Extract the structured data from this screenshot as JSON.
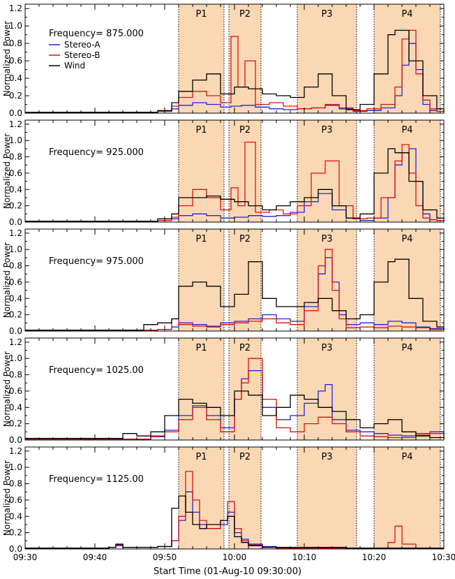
{
  "colors": {
    "stereo_a": "#2222dd",
    "stereo_b": "#dd1111",
    "wind": "#000000",
    "shade": "#fbd8b4"
  },
  "legend": [
    {
      "label": "Stereo-A",
      "color": "#2222dd"
    },
    {
      "label": "Stereo-B",
      "color": "#dd1111"
    },
    {
      "label": "Wind",
      "color": "#000000"
    }
  ],
  "y_axis_label": "Normalized Power",
  "x_axis_label": "Start Time (01-Aug-10 09:30:00)",
  "x_ticks": [
    "09:30",
    "09:40",
    "09:50",
    "10:00",
    "10:10",
    "10:20",
    "10:30"
  ],
  "y_ticks": [
    "0.0",
    "0.2",
    "0.4",
    "0.6",
    "0.8",
    "1.0",
    "1.2"
  ],
  "periods": [
    {
      "label": "P1",
      "start": 22.0,
      "end": 28.5
    },
    {
      "label": "P2",
      "start": 29.2,
      "end": 33.8
    },
    {
      "label": "P3",
      "start": 39.0,
      "end": 47.5
    },
    {
      "label": "P4",
      "start": 50.0,
      "end": 59.5
    }
  ],
  "chart_data": [
    {
      "type": "line",
      "frequency_label": "Frequency= 875.000",
      "xlim": [
        0,
        60
      ],
      "ylim": [
        0,
        1.25
      ],
      "show_legend": true,
      "series": [
        {
          "name": "Stereo-A",
          "x": [
            0,
            19,
            21,
            22,
            24,
            26,
            28,
            29.5,
            31,
            33,
            35,
            37,
            39,
            41,
            43,
            45,
            47,
            49,
            51,
            53,
            54,
            55,
            56,
            57,
            58,
            59,
            60
          ],
          "values": [
            0.01,
            0.02,
            0.05,
            0.09,
            0.12,
            0.1,
            0.07,
            0.08,
            0.09,
            0.07,
            0.05,
            0.04,
            0.05,
            0.06,
            0.09,
            0.05,
            0.02,
            0.03,
            0.06,
            0.2,
            0.55,
            0.8,
            0.5,
            0.1,
            0.03,
            0.02,
            0.01
          ]
        },
        {
          "name": "Stereo-B",
          "x": [
            0,
            19,
            21,
            22,
            24,
            26,
            28,
            29.5,
            30.5,
            31.5,
            33,
            35,
            37,
            39,
            41,
            43,
            45,
            47,
            49,
            51,
            53,
            54,
            55,
            56,
            57,
            58,
            59,
            60
          ],
          "values": [
            0.01,
            0.02,
            0.08,
            0.18,
            0.25,
            0.2,
            0.12,
            0.88,
            0.3,
            0.6,
            0.1,
            0.12,
            0.08,
            0.05,
            0.06,
            0.1,
            0.06,
            0.03,
            0.05,
            0.1,
            0.3,
            0.85,
            0.95,
            0.45,
            0.15,
            0.05,
            0.02,
            0.01
          ]
        },
        {
          "name": "Wind",
          "x": [
            0,
            19,
            21,
            22,
            24,
            26,
            28,
            30,
            32,
            34,
            36,
            38,
            40,
            42,
            44,
            46,
            48,
            50,
            52,
            53,
            55,
            57,
            59,
            60
          ],
          "values": [
            0.01,
            0.03,
            0.12,
            0.25,
            0.38,
            0.45,
            0.22,
            0.3,
            0.28,
            0.22,
            0.2,
            0.18,
            0.3,
            0.45,
            0.2,
            0.04,
            0.1,
            0.45,
            0.9,
            0.95,
            0.6,
            0.2,
            0.05,
            0.02
          ]
        }
      ]
    },
    {
      "type": "line",
      "frequency_label": "Frequency= 925.000",
      "xlim": [
        0,
        60
      ],
      "ylim": [
        0,
        1.25
      ],
      "show_legend": false,
      "series": [
        {
          "name": "Stereo-A",
          "x": [
            0,
            19,
            21,
            22,
            24,
            26,
            28,
            30,
            32,
            34,
            36,
            38,
            40,
            42,
            44,
            46,
            48,
            50,
            52,
            53,
            54,
            55,
            56,
            57,
            58,
            59,
            60
          ],
          "values": [
            0.01,
            0.02,
            0.04,
            0.08,
            0.1,
            0.08,
            0.05,
            0.06,
            0.08,
            0.07,
            0.08,
            0.12,
            0.25,
            0.35,
            0.15,
            0.05,
            0.02,
            0.05,
            0.3,
            0.7,
            0.85,
            0.9,
            0.5,
            0.1,
            0.03,
            0.02,
            0.01
          ]
        },
        {
          "name": "Stereo-B",
          "x": [
            0,
            19,
            21,
            22,
            24,
            26,
            28,
            29.5,
            30.5,
            31.5,
            33,
            35,
            37,
            39,
            41,
            43,
            45,
            47,
            49,
            51,
            53,
            54,
            55,
            56,
            57,
            58,
            59,
            60
          ],
          "values": [
            0.01,
            0.02,
            0.06,
            0.2,
            0.4,
            0.3,
            0.15,
            0.42,
            0.2,
            0.98,
            0.12,
            0.15,
            0.1,
            0.2,
            0.6,
            0.75,
            0.2,
            0.04,
            0.05,
            0.3,
            0.75,
            0.95,
            0.6,
            0.2,
            0.05,
            0.03,
            0.02,
            0.01
          ]
        },
        {
          "name": "Wind",
          "x": [
            0,
            19,
            21,
            22,
            24,
            26,
            28,
            30,
            32,
            34,
            36,
            38,
            40,
            42,
            44,
            46,
            48,
            50,
            52,
            53,
            55,
            57,
            59,
            60
          ],
          "values": [
            0.01,
            0.04,
            0.1,
            0.3,
            0.3,
            0.32,
            0.28,
            0.25,
            0.2,
            0.15,
            0.2,
            0.25,
            0.3,
            0.4,
            0.2,
            0.05,
            0.1,
            0.6,
            0.9,
            0.85,
            0.5,
            0.15,
            0.05,
            0.02
          ]
        }
      ]
    },
    {
      "type": "line",
      "frequency_label": "Frequency= 975.000",
      "xlim": [
        0,
        60
      ],
      "ylim": [
        0,
        1.25
      ],
      "show_legend": false,
      "series": [
        {
          "name": "Stereo-A",
          "x": [
            0,
            19,
            21,
            22,
            24,
            26,
            28,
            30,
            32,
            34,
            36,
            38,
            40,
            42,
            43,
            44,
            45,
            46,
            48,
            50,
            52,
            54,
            56,
            58,
            60
          ],
          "values": [
            0.01,
            0.02,
            0.05,
            0.1,
            0.08,
            0.06,
            0.1,
            0.12,
            0.15,
            0.2,
            0.15,
            0.12,
            0.3,
            0.7,
            0.9,
            0.6,
            0.2,
            0.08,
            0.1,
            0.08,
            0.12,
            0.1,
            0.05,
            0.03,
            0.02
          ]
        },
        {
          "name": "Stereo-B",
          "x": [
            0,
            19,
            21,
            22,
            24,
            26,
            28,
            30,
            32,
            34,
            36,
            38,
            40,
            42,
            43,
            44,
            45,
            46,
            48,
            50,
            52,
            54,
            56,
            58,
            60
          ],
          "values": [
            0.01,
            0.02,
            0.15,
            0.08,
            0.06,
            0.05,
            0.08,
            0.1,
            0.12,
            0.15,
            0.1,
            0.08,
            0.25,
            0.8,
            1.0,
            0.5,
            0.15,
            0.04,
            0.05,
            0.04,
            0.06,
            0.05,
            0.04,
            0.02,
            0.01
          ]
        },
        {
          "name": "Wind",
          "x": [
            0,
            17,
            19,
            21,
            22,
            24,
            26,
            28,
            30,
            32,
            34,
            36,
            38,
            40,
            42,
            44,
            46,
            48,
            50,
            52,
            53,
            55,
            57,
            59,
            60
          ],
          "values": [
            0.01,
            0.08,
            0.1,
            0.15,
            0.55,
            0.6,
            0.55,
            0.3,
            0.45,
            0.85,
            0.4,
            0.3,
            0.3,
            0.35,
            0.4,
            0.25,
            0.15,
            0.2,
            0.6,
            0.85,
            0.88,
            0.4,
            0.12,
            0.05,
            0.02
          ]
        }
      ]
    },
    {
      "type": "line",
      "frequency_label": "Frequency= 1025.00",
      "xlim": [
        0,
        60
      ],
      "ylim": [
        0,
        1.25
      ],
      "show_legend": false,
      "series": [
        {
          "name": "Stereo-A",
          "x": [
            0,
            18,
            20,
            22,
            24,
            26,
            28,
            30,
            31,
            32,
            34,
            36,
            38,
            40,
            42,
            43,
            44,
            46,
            48,
            50,
            52,
            54,
            56,
            58,
            60
          ],
          "values": [
            0.01,
            0.05,
            0.12,
            0.3,
            0.42,
            0.3,
            0.15,
            0.5,
            0.75,
            0.85,
            0.4,
            0.25,
            0.3,
            0.45,
            0.6,
            0.68,
            0.25,
            0.12,
            0.1,
            0.08,
            0.06,
            0.05,
            0.08,
            0.1,
            0.02
          ]
        },
        {
          "name": "Stereo-B",
          "x": [
            0,
            18,
            20,
            22,
            24,
            26,
            28,
            30,
            31,
            32,
            34,
            36,
            38,
            40,
            42,
            44,
            46,
            48,
            50,
            52,
            54,
            56,
            58,
            60
          ],
          "values": [
            0.01,
            0.04,
            0.1,
            0.25,
            0.4,
            0.25,
            0.1,
            0.5,
            0.7,
            1.0,
            0.5,
            0.15,
            0.1,
            0.2,
            0.28,
            0.2,
            0.1,
            0.05,
            0.04,
            0.03,
            0.03,
            0.06,
            0.08,
            0.02
          ]
        },
        {
          "name": "Wind",
          "x": [
            0,
            14,
            16,
            18,
            20,
            22,
            24,
            26,
            28,
            30,
            32,
            34,
            36,
            38,
            40,
            42,
            44,
            46,
            48,
            50,
            52,
            54,
            56,
            58,
            60
          ],
          "values": [
            0.02,
            0.08,
            0.05,
            0.1,
            0.3,
            0.5,
            0.45,
            0.4,
            0.3,
            0.6,
            0.55,
            0.3,
            0.4,
            0.55,
            0.5,
            0.4,
            0.35,
            0.25,
            0.15,
            0.2,
            0.25,
            0.1,
            0.05,
            0.03,
            0.02
          ]
        }
      ]
    },
    {
      "type": "line",
      "frequency_label": "Frequency= 1125.00",
      "xlim": [
        0,
        60
      ],
      "ylim": [
        0,
        1.25
      ],
      "show_legend": false,
      "series": [
        {
          "name": "Stereo-A",
          "x": [
            0,
            12,
            13,
            14,
            19,
            21,
            22,
            23,
            24,
            25,
            26,
            28,
            29,
            30,
            31,
            32,
            34,
            36,
            40,
            46,
            50,
            54,
            58,
            60
          ],
          "values": [
            0.01,
            0.02,
            0.05,
            0.02,
            0.03,
            0.1,
            0.35,
            0.7,
            0.45,
            0.3,
            0.25,
            0.3,
            0.45,
            0.2,
            0.12,
            0.06,
            0.03,
            0.02,
            0.02,
            0.01,
            0.01,
            0.01,
            0.01,
            0.01
          ]
        },
        {
          "name": "Stereo-B",
          "x": [
            0,
            12,
            13,
            14,
            19,
            21,
            22,
            23,
            24,
            25,
            26,
            28,
            29,
            30,
            31,
            32,
            34,
            36,
            40,
            46,
            50,
            52,
            53,
            54,
            56,
            58,
            60
          ],
          "values": [
            0.01,
            0.02,
            0.04,
            0.02,
            0.03,
            0.1,
            0.4,
            0.95,
            0.6,
            0.35,
            0.25,
            0.35,
            0.58,
            0.25,
            0.1,
            0.05,
            0.02,
            0.01,
            0.01,
            0.01,
            0.01,
            0.08,
            0.28,
            0.06,
            0.01,
            0.01,
            0.01
          ]
        },
        {
          "name": "Wind",
          "x": [
            0,
            12,
            13,
            14,
            19,
            21,
            22,
            23,
            24,
            25,
            26,
            28,
            29,
            30,
            31,
            32,
            34,
            36,
            40,
            46,
            50,
            54,
            58,
            60
          ],
          "values": [
            0.01,
            0.02,
            0.06,
            0.02,
            0.03,
            0.5,
            0.65,
            0.45,
            0.3,
            0.25,
            0.3,
            0.35,
            0.4,
            0.15,
            0.08,
            0.04,
            0.02,
            0.02,
            0.02,
            0.01,
            0.01,
            0.01,
            0.01,
            0.01
          ]
        }
      ]
    }
  ]
}
